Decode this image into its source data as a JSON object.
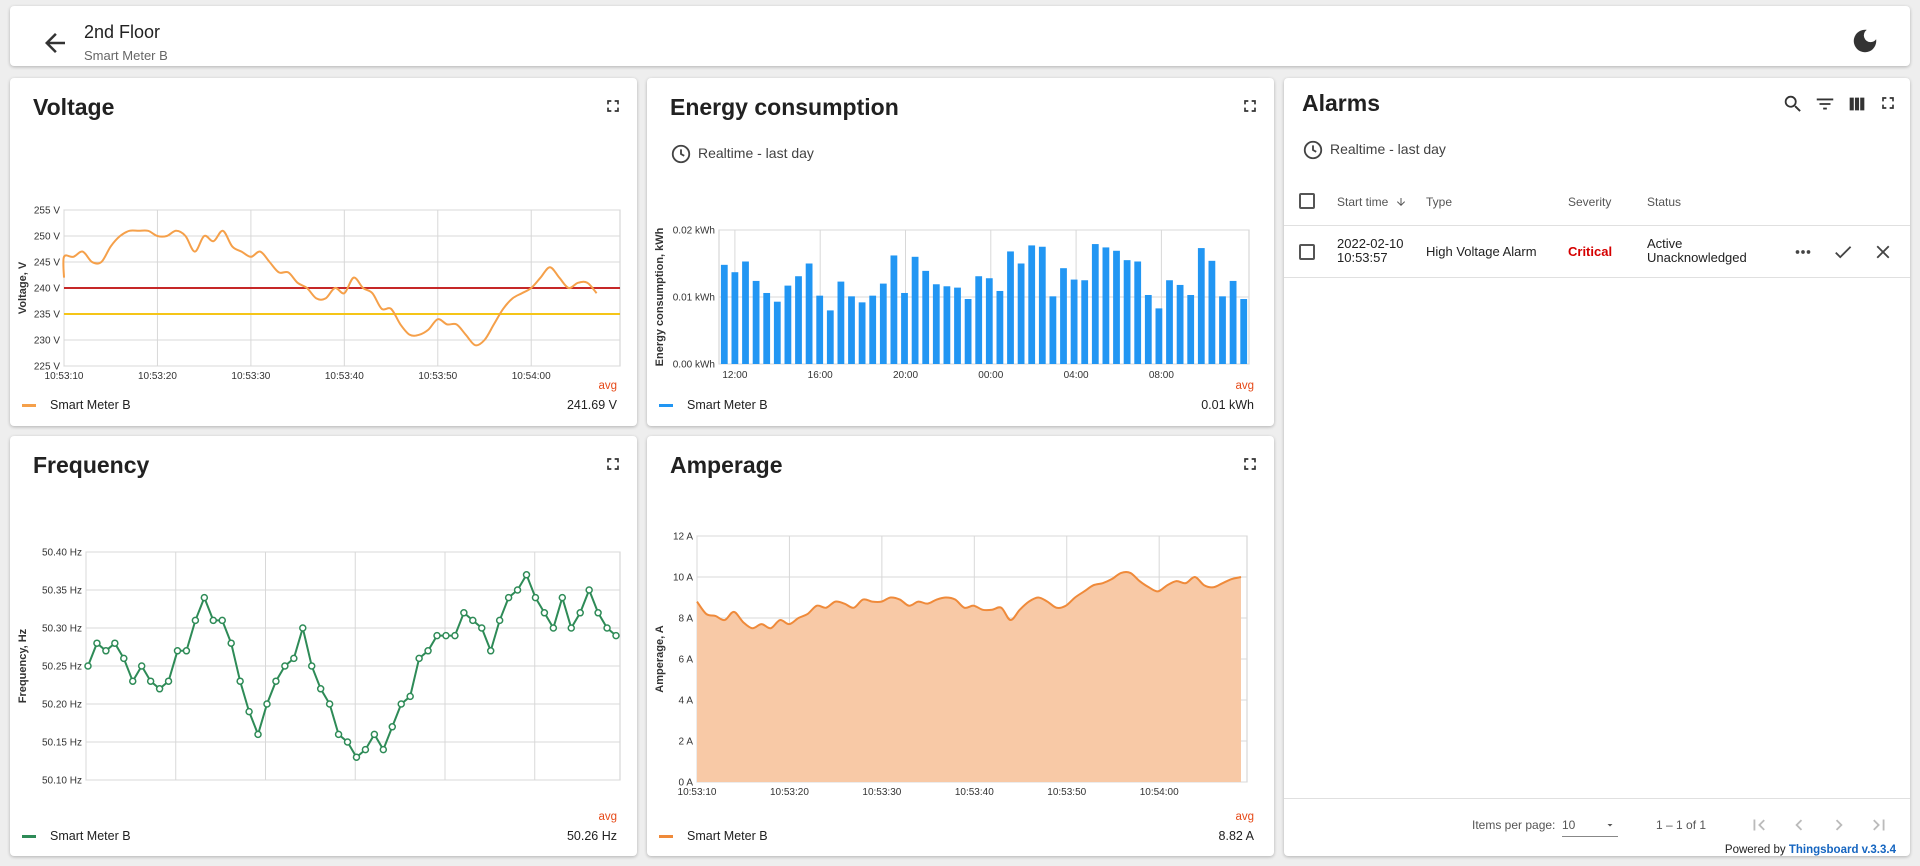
{
  "header": {
    "title": "2nd Floor",
    "subtitle": "Smart Meter B"
  },
  "colors": {
    "voltage": "#f5a04a",
    "energy": "#2196f3",
    "frequency": "#2e8b57",
    "amperage": "#ef8a3a",
    "amperage_fill": "#f8c9a6",
    "critical": "#d50000",
    "avg": "#e64a19",
    "threshold_red": "#c62828",
    "threshold_yellow": "#f5c518"
  },
  "icons": {
    "back": "arrow-left-icon",
    "theme": "moon-icon",
    "fullscreen": "fullscreen-icon",
    "clock": "clock-icon",
    "search": "search-icon",
    "filter": "filter-icon",
    "columns": "columns-icon",
    "more": "more-horiz-icon",
    "ack": "check-icon",
    "clear": "close-icon"
  },
  "voltage": {
    "title": "Voltage",
    "legend": {
      "avg_label": "avg",
      "name": "Smart Meter B",
      "value": "241.69 V"
    },
    "chart_data": {
      "type": "line",
      "ylabel": "Voltage, V",
      "ylim": [
        225,
        255
      ],
      "yticks": [
        "225 V",
        "230 V",
        "235 V",
        "240 V",
        "245 V",
        "250 V",
        "255 V"
      ],
      "xticks": [
        "10:53:10",
        "10:53:20",
        "10:53:30",
        "10:53:40",
        "10:53:50",
        "10:54:00"
      ],
      "x_range": [
        0,
        59.5
      ],
      "x_tick_values": [
        0,
        10,
        20,
        30,
        40,
        50
      ],
      "thresholds": [
        240,
        235
      ],
      "series": [
        {
          "name": "Smart Meter B",
          "values": [
            [
              -1,
              242
            ],
            [
              0,
              246
            ],
            [
              1,
              246
            ],
            [
              2,
              247
            ],
            [
              3,
              245
            ],
            [
              4,
              245
            ],
            [
              5,
              248
            ],
            [
              6,
              250
            ],
            [
              7,
              251
            ],
            [
              8,
              251
            ],
            [
              9,
              251
            ],
            [
              10,
              250
            ],
            [
              11,
              250
            ],
            [
              12,
              251
            ],
            [
              13,
              250
            ],
            [
              14,
              247
            ],
            [
              15,
              250
            ],
            [
              16,
              249
            ],
            [
              17,
              251
            ],
            [
              18,
              248
            ],
            [
              19,
              247
            ],
            [
              20,
              246
            ],
            [
              21,
              247
            ],
            [
              22,
              245
            ],
            [
              23,
              243
            ],
            [
              24,
              243
            ],
            [
              25,
              241
            ],
            [
              26,
              240
            ],
            [
              27,
              238
            ],
            [
              28,
              238
            ],
            [
              29,
              240
            ],
            [
              30,
              239
            ],
            [
              31,
              242
            ],
            [
              32,
              240
            ],
            [
              33,
              239
            ],
            [
              34,
              236
            ],
            [
              35,
              236
            ],
            [
              36,
              233
            ],
            [
              37,
              231
            ],
            [
              38,
              231
            ],
            [
              39,
              232
            ],
            [
              40,
              234
            ],
            [
              41,
              233
            ],
            [
              42,
              233
            ],
            [
              43,
              231
            ],
            [
              44,
              229
            ],
            [
              45,
              230
            ],
            [
              46,
              233
            ],
            [
              47,
              236
            ],
            [
              48,
              238
            ],
            [
              49,
              239
            ],
            [
              50,
              240
            ],
            [
              51,
              242
            ],
            [
              52,
              244
            ],
            [
              53,
              242
            ],
            [
              54,
              240
            ],
            [
              55,
              241
            ],
            [
              56,
              241
            ],
            [
              57,
              239
            ]
          ]
        }
      ]
    }
  },
  "energy": {
    "title": "Energy consumption",
    "realtime": "Realtime - last day",
    "legend": {
      "avg_label": "avg",
      "name": "Smart Meter B",
      "value": "0.01 kWh"
    },
    "chart_data": {
      "type": "bar",
      "ylabel": "Energy consumption, kWh",
      "ylim": [
        0,
        0.02
      ],
      "yticks": [
        "0.00 kWh",
        "0.01 kWh",
        "0.02 kWh"
      ],
      "xticks": [
        "12:00",
        "16:00",
        "20:00",
        "00:00",
        "04:00",
        "08:00"
      ],
      "series": [
        {
          "name": "Smart Meter B",
          "values": [
            0.0148,
            0.0137,
            0.0153,
            0.0124,
            0.0106,
            0.0093,
            0.0117,
            0.0131,
            0.015,
            0.0102,
            0.008,
            0.0123,
            0.0101,
            0.0092,
            0.0102,
            0.012,
            0.0162,
            0.0106,
            0.016,
            0.0139,
            0.0119,
            0.0116,
            0.0114,
            0.0097,
            0.0131,
            0.0128,
            0.0109,
            0.0168,
            0.015,
            0.0177,
            0.0175,
            0.0101,
            0.0143,
            0.0126,
            0.0125,
            0.0179,
            0.0174,
            0.0169,
            0.0155,
            0.0153,
            0.0103,
            0.0083,
            0.0125,
            0.0118,
            0.0103,
            0.0173,
            0.0154,
            0.0101,
            0.0124,
            0.0097
          ]
        }
      ]
    }
  },
  "frequency": {
    "title": "Frequency",
    "legend": {
      "avg_label": "avg",
      "name": "Smart Meter B",
      "value": "50.26 Hz"
    },
    "chart_data": {
      "type": "line",
      "ylabel": "Frequency, Hz",
      "ylim": [
        50.1,
        50.4
      ],
      "yticks": [
        "50.10 Hz",
        "50.15 Hz",
        "50.20 Hz",
        "50.25 Hz",
        "50.30 Hz",
        "50.35 Hz",
        "50.40 Hz"
      ],
      "xticks": [
        "10:53:10",
        "10:53:20",
        "10:53:30",
        "10:53:40",
        "10:53:50",
        "10:54:00"
      ],
      "x_range": [
        0,
        59.5
      ],
      "x_tick_values": [
        0,
        10,
        20,
        30,
        40,
        50
      ],
      "series": [
        {
          "name": "Smart Meter B",
          "values": [
            50.25,
            50.28,
            50.27,
            50.28,
            50.26,
            50.23,
            50.25,
            50.23,
            50.22,
            50.23,
            50.27,
            50.27,
            50.31,
            50.34,
            50.31,
            50.31,
            50.28,
            50.23,
            50.19,
            50.16,
            50.2,
            50.23,
            50.25,
            50.26,
            50.3,
            50.25,
            50.22,
            50.2,
            50.16,
            50.15,
            50.13,
            50.14,
            50.16,
            50.14,
            50.17,
            50.2,
            50.21,
            50.26,
            50.27,
            50.29,
            50.29,
            50.29,
            50.32,
            50.31,
            50.3,
            50.27,
            50.31,
            50.34,
            50.35,
            50.37,
            50.34,
            50.32,
            50.3,
            50.34,
            50.3,
            50.32,
            50.35,
            50.32,
            50.3,
            50.29
          ]
        }
      ]
    }
  },
  "amperage": {
    "title": "Amperage",
    "legend": {
      "avg_label": "avg",
      "name": "Smart Meter B",
      "value": "8.82 A"
    },
    "chart_data": {
      "type": "area",
      "ylabel": "Amperage, A",
      "ylim": [
        0,
        12
      ],
      "yticks": [
        "0 A",
        "2 A",
        "4 A",
        "6 A",
        "8 A",
        "10 A",
        "12 A"
      ],
      "xticks": [
        "10:53:10",
        "10:53:20",
        "10:53:30",
        "10:53:40",
        "10:53:50",
        "10:54:00"
      ],
      "x_range": [
        0,
        59.5
      ],
      "x_tick_values": [
        0,
        10,
        20,
        30,
        40,
        50
      ],
      "series": [
        {
          "name": "Smart Meter B",
          "values": [
            8.8,
            8.2,
            8.1,
            7.9,
            8.3,
            7.8,
            7.5,
            7.7,
            7.5,
            7.9,
            7.7,
            8.0,
            8.2,
            8.6,
            8.5,
            8.8,
            8.7,
            8.5,
            8.9,
            8.8,
            8.8,
            9.0,
            8.9,
            8.6,
            8.8,
            8.7,
            8.9,
            9.0,
            8.9,
            8.5,
            8.6,
            8.4,
            8.4,
            8.5,
            7.9,
            8.4,
            8.8,
            9.0,
            8.8,
            8.5,
            8.6,
            9.0,
            9.3,
            9.6,
            9.7,
            9.9,
            10.2,
            10.2,
            9.8,
            9.5,
            9.3,
            9.6,
            9.8,
            9.7,
            10.0,
            9.6,
            9.5,
            9.7,
            9.9,
            10.0
          ]
        }
      ]
    }
  },
  "alarms": {
    "title": "Alarms",
    "realtime": "Realtime - last day",
    "columns": [
      "Start time",
      "Type",
      "Severity",
      "Status"
    ],
    "rows": [
      {
        "start_time_date": "2022-02-10",
        "start_time_clock": "10:53:57",
        "type": "High Voltage Alarm",
        "severity": "Critical",
        "status_line1": "Active",
        "status_line2": "Unacknowledged"
      }
    ],
    "pagination": {
      "items_per_page_label": "Items per page:",
      "items_per_page": "10",
      "range": "1 – 1 of 1"
    },
    "powered_by_label": "Powered by",
    "powered_by_link": "Thingsboard v.3.3.4"
  }
}
